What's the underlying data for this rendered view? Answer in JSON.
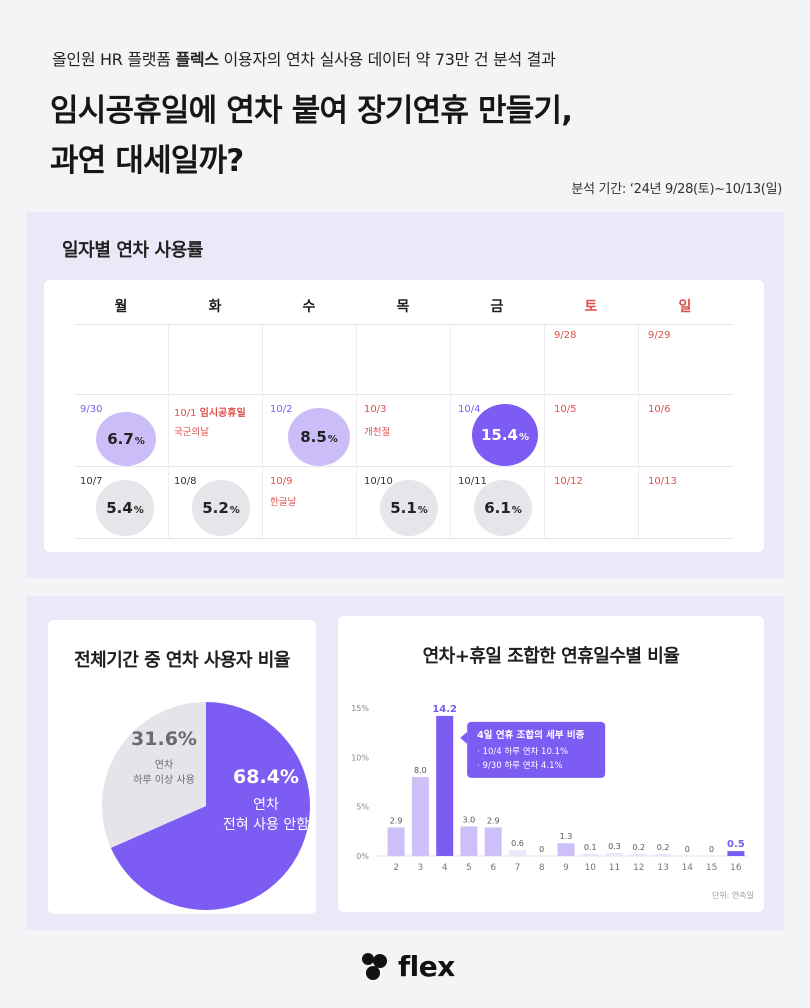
{
  "header": {
    "subtitle_pre": "올인원 HR 플랫폼 ",
    "subtitle_brand": "플렉스",
    "subtitle_post": " 이용자의 연차 실사용 데이터 약 73만 건 분석 결과",
    "title_line1": "임시공휴일에 연차 붙여 장기연휴 만들기,",
    "title_line2": "과연 대세일까?",
    "period": "분석 기간: ‘24년 9/28(토)~10/13(일)"
  },
  "calendar": {
    "title": "일자별 연차 사용률",
    "weekdays": [
      "월",
      "화",
      "수",
      "목",
      "금",
      "토",
      "일"
    ],
    "week1": {
      "sat": "9/28",
      "sun": "9/29"
    },
    "week2": {
      "mon_date": "9/30",
      "mon_value": "6.7",
      "tue_date": "10/1",
      "tue_tag": "임시공휴일",
      "tue_note": "국군의날",
      "wed_date": "10/2",
      "wed_value": "8.5",
      "thu_date": "10/3",
      "thu_note": "개천절",
      "fri_date": "10/4",
      "fri_value": "15.4",
      "sat_date": "10/5",
      "sun_date": "10/6"
    },
    "week3": {
      "mon_date": "10/7",
      "mon_value": "5.4",
      "tue_date": "10/8",
      "tue_value": "5.2",
      "wed_date": "10/9",
      "wed_note": "한글날",
      "thu_date": "10/10",
      "thu_value": "5.1",
      "fri_date": "10/11",
      "fri_value": "6.1",
      "sat_date": "10/12",
      "sun_date": "10/13"
    },
    "percent_unit": "%"
  },
  "chart_data": [
    {
      "type": "pie",
      "title": "전체기간 중 연차 사용자 비율",
      "slices": [
        {
          "label_line1": "연차",
          "label_line2": "전혀 사용 안함",
          "value": 68.4,
          "display": "68.4%",
          "color": "#7c5cf3"
        },
        {
          "label_line1": "연차",
          "label_line2": "하루 이상 사용",
          "value": 31.6,
          "display": "31.6%",
          "color": "#e5e4ea"
        }
      ]
    },
    {
      "type": "bar",
      "title": "연차+휴일 조합한 연휴일수별 비율",
      "categories": [
        "2",
        "3",
        "4",
        "5",
        "6",
        "7",
        "8",
        "9",
        "10",
        "11",
        "12",
        "13",
        "14",
        "15",
        "16"
      ],
      "values": [
        2.9,
        8.0,
        14.2,
        3.0,
        2.9,
        0.6,
        0,
        1.3,
        0.1,
        0.3,
        0.2,
        0.2,
        0,
        0,
        0.5
      ],
      "value_labels": [
        "2.9",
        "8.0",
        "14.2",
        "3.0",
        "2.9",
        "0.6",
        "0",
        "1.3",
        "0.1",
        "0.3",
        "0.2",
        "0.2",
        "0",
        "0",
        "0.5"
      ],
      "highlight": [
        "4",
        "16"
      ],
      "ylim": [
        0,
        15
      ],
      "yticks": [
        "0%",
        "5%",
        "10%",
        "15%"
      ],
      "unit_note": "단위: 연속일",
      "annotation": {
        "title": "4일 연휴 조합의 세부 비중",
        "line1": "10/4  하루 연차 10.1%",
        "line2": "9/30  하루 연차   4.1%"
      },
      "colors": {
        "strong": "#7c5cf3",
        "light": "#cdc0f8",
        "faint": "#ebe6fb"
      }
    }
  ],
  "footer": {
    "logo_text": "flex"
  }
}
